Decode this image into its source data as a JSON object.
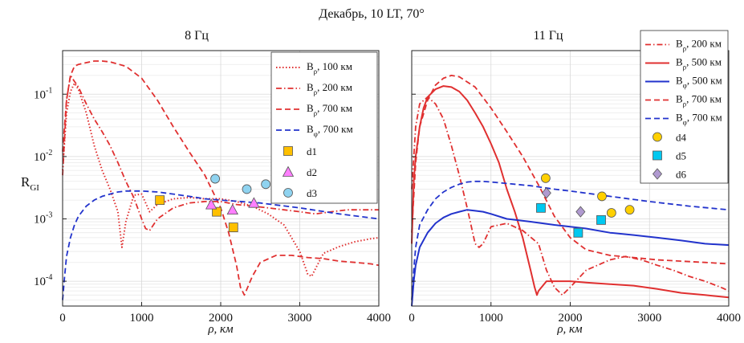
{
  "suptitle": "Декабрь, 10 LT, 70°",
  "chart_data": [
    {
      "type": "line",
      "title": "8 Гц",
      "xlabel": "ρ, км",
      "ylabel": "R_GI",
      "ylabel_main": "R",
      "ylabel_sub": "GI",
      "xlim": [
        0,
        4000
      ],
      "ylim": [
        4e-05,
        0.5
      ],
      "yscale": "log",
      "grid": true,
      "legend_position": "top-right",
      "xticks": [
        0,
        1000,
        2000,
        3000,
        4000
      ],
      "xtick_labels": [
        "0",
        "1000",
        "2000",
        "3000",
        "4000"
      ],
      "yticks": [
        0.0001,
        0.001,
        0.01,
        0.1
      ],
      "ytick_labels": [
        {
          "base": "10",
          "exp": "-4"
        },
        {
          "base": "10",
          "exp": "-3"
        },
        {
          "base": "10",
          "exp": "-2"
        },
        {
          "base": "10",
          "exp": "-1"
        }
      ],
      "series": [
        {
          "name": "Bρ, 100 км",
          "label_base": "B",
          "label_sub": "ρ",
          "label_rest": ", 100 км",
          "color": "#e03030",
          "dash": "1.5,2.5",
          "width": 2,
          "x": [
            0,
            50,
            100,
            150,
            200,
            300,
            400,
            500,
            600,
            700,
            750,
            800,
            900,
            1000,
            1100,
            1200,
            1400,
            1600,
            1800,
            2000,
            2200,
            2400,
            2600,
            2800,
            3000,
            3100,
            3150,
            3200,
            3300,
            3500,
            3700,
            3900,
            4000
          ],
          "y": [
            0.006,
            0.05,
            0.11,
            0.15,
            0.12,
            0.05,
            0.015,
            0.006,
            0.003,
            0.0013,
            0.00035,
            0.0009,
            0.0024,
            0.0025,
            0.0013,
            0.0017,
            0.0021,
            0.0022,
            0.0021,
            0.0021,
            0.0019,
            0.0016,
            0.0012,
            0.0008,
            0.0003,
            0.00013,
            0.00012,
            0.00016,
            0.00028,
            0.00036,
            0.00043,
            0.00048,
            0.0005
          ]
        },
        {
          "name": "Bρ, 200 км",
          "label_base": "B",
          "label_sub": "ρ",
          "label_rest": ", 200 км",
          "color": "#e03030",
          "dash": "7,3,1.5,3",
          "width": 1.8,
          "x": [
            0,
            50,
            100,
            150,
            200,
            300,
            400,
            500,
            600,
            700,
            800,
            900,
            1000,
            1050,
            1100,
            1200,
            1400,
            1600,
            1800,
            2000,
            2200,
            2400,
            2600,
            2800,
            3000,
            3200,
            3400,
            3600,
            3800,
            4000
          ],
          "y": [
            0.005,
            0.08,
            0.2,
            0.16,
            0.13,
            0.07,
            0.04,
            0.025,
            0.015,
            0.008,
            0.004,
            0.0022,
            0.001,
            0.0007,
            0.00065,
            0.001,
            0.0015,
            0.0018,
            0.0019,
            0.0019,
            0.0017,
            0.0016,
            0.0015,
            0.0014,
            0.0013,
            0.0012,
            0.0013,
            0.0014,
            0.0014,
            0.0014
          ]
        },
        {
          "name": "Bρ, 700 км",
          "label_base": "B",
          "label_sub": "ρ",
          "label_rest": ", 700 км",
          "color": "#e03030",
          "dash": "7,4",
          "width": 1.8,
          "x": [
            0,
            50,
            100,
            150,
            200,
            300,
            400,
            500,
            600,
            800,
            1000,
            1200,
            1400,
            1600,
            1800,
            2000,
            2100,
            2200,
            2250,
            2300,
            2400,
            2500,
            2700,
            2900,
            3100,
            3300,
            3500,
            3700,
            3900,
            4000
          ],
          "y": [
            0.012,
            0.08,
            0.2,
            0.28,
            0.3,
            0.32,
            0.34,
            0.34,
            0.33,
            0.28,
            0.18,
            0.08,
            0.03,
            0.012,
            0.005,
            0.0015,
            0.0006,
            0.00018,
            8e-05,
            6e-05,
            0.00012,
            0.0002,
            0.00026,
            0.00026,
            0.00024,
            0.00023,
            0.00021,
            0.0002,
            0.00019,
            0.00018
          ]
        },
        {
          "name": "Bφ, 700 км",
          "label_base": "B",
          "label_sub": "φ",
          "label_rest": ", 700 км",
          "color": "#2233cc",
          "dash": "7,4",
          "width": 1.8,
          "x": [
            0,
            25,
            50,
            100,
            150,
            200,
            300,
            400,
            500,
            600,
            700,
            800,
            1000,
            1200,
            1400,
            1600,
            1800,
            2000,
            2500,
            3000,
            3500,
            4000
          ],
          "y": [
            5e-05,
            0.00012,
            0.00025,
            0.0005,
            0.0008,
            0.0011,
            0.0016,
            0.002,
            0.0023,
            0.0025,
            0.0027,
            0.0028,
            0.0028,
            0.0027,
            0.0025,
            0.0023,
            0.0021,
            0.002,
            0.0018,
            0.0015,
            0.0012,
            0.001
          ]
        }
      ],
      "markers": [
        {
          "name": "d1",
          "shape": "square",
          "color": "#ffc000",
          "x": [
            1230,
            1950,
            2160
          ],
          "y": [
            0.002,
            0.0013,
            0.00073
          ]
        },
        {
          "name": "d2",
          "shape": "triangle",
          "color": "#ff7fff",
          "x": [
            1880,
            2150,
            2420
          ],
          "y": [
            0.0017,
            0.0014,
            0.0018
          ]
        },
        {
          "name": "d3",
          "shape": "circle",
          "color": "#8fd3f0",
          "x": [
            1930,
            2330,
            2570
          ],
          "y": [
            0.0044,
            0.003,
            0.0036
          ]
        }
      ]
    },
    {
      "type": "line",
      "title": "11 Гц",
      "xlabel": "ρ, км",
      "xlim": [
        0,
        4000
      ],
      "ylim": [
        4e-05,
        0.5
      ],
      "yscale": "log",
      "grid": true,
      "legend_position": "top-right",
      "xticks": [
        0,
        1000,
        2000,
        3000,
        4000
      ],
      "xtick_labels": [
        "0",
        "1000",
        "2000",
        "3000",
        "4000"
      ],
      "yticks": [
        0.0001,
        0.001,
        0.01,
        0.1
      ],
      "series": [
        {
          "name": "Bρ, 200 км",
          "label_base": "B",
          "label_sub": "ρ",
          "label_rest": ", 200 км",
          "color": "#e03030",
          "dash": "7,3,1.5,3",
          "width": 1.8,
          "x": [
            0,
            50,
            100,
            200,
            300,
            400,
            500,
            600,
            700,
            800,
            850,
            900,
            1000,
            1200,
            1400,
            1600,
            1700,
            1800,
            1900,
            2000,
            2200,
            2500,
            2700,
            2900,
            3100,
            3300,
            3500,
            3700,
            3900,
            4000
          ],
          "y": [
            0.003,
            0.03,
            0.07,
            0.09,
            0.07,
            0.04,
            0.015,
            0.005,
            0.0015,
            0.0004,
            0.00035,
            0.0004,
            0.00075,
            0.00085,
            0.00065,
            0.0004,
            0.00015,
            8e-05,
            6e-05,
            8e-05,
            0.00015,
            0.00022,
            0.00025,
            0.00022,
            0.00018,
            0.00015,
            0.00012,
            0.0001,
            8e-05,
            7e-05
          ]
        },
        {
          "name": "Bρ, 500 км",
          "label_base": "B",
          "label_sub": "ρ",
          "label_rest": ", 500 км",
          "color": "#e03030",
          "dash": "",
          "width": 2,
          "x": [
            0,
            25,
            50,
            100,
            150,
            200,
            300,
            400,
            500,
            600,
            700,
            800,
            900,
            1000,
            1100,
            1200,
            1300,
            1400,
            1500,
            1550,
            1580,
            1600,
            1700,
            1800,
            2000,
            2200,
            2500,
            2800,
            3100,
            3400,
            3700,
            4000
          ],
          "y": [
            0.0004,
            0.004,
            0.01,
            0.03,
            0.06,
            0.09,
            0.12,
            0.135,
            0.13,
            0.11,
            0.08,
            0.05,
            0.03,
            0.016,
            0.008,
            0.003,
            0.0013,
            0.0005,
            0.00015,
            8e-05,
            6e-05,
            7e-05,
            0.0001,
            0.0001,
            0.0001,
            9.5e-05,
            9e-05,
            8.5e-05,
            7.5e-05,
            6.5e-05,
            6e-05,
            5.5e-05
          ]
        },
        {
          "name": "Bφ, 500 км",
          "label_base": "B",
          "label_sub": "φ",
          "label_rest": ", 500 км",
          "color": "#2233cc",
          "dash": "",
          "width": 2,
          "x": [
            0,
            25,
            50,
            100,
            200,
            300,
            400,
            500,
            600,
            700,
            800,
            900,
            1000,
            1200,
            1500,
            1800,
            2000,
            2200,
            2500,
            2800,
            3100,
            3400,
            3700,
            4000
          ],
          "y": [
            4e-05,
            0.0001,
            0.00018,
            0.00035,
            0.0006,
            0.00085,
            0.00105,
            0.0012,
            0.0013,
            0.0014,
            0.00135,
            0.0013,
            0.0012,
            0.001,
            0.0009,
            0.0008,
            0.00075,
            0.0007,
            0.0006,
            0.00055,
            0.0005,
            0.00045,
            0.0004,
            0.00038
          ]
        },
        {
          "name": "Bρ, 700 км",
          "label_base": "B",
          "label_sub": "ρ",
          "label_rest": ", 700 км",
          "color": "#e03030",
          "dash": "7,4",
          "width": 1.8,
          "x": [
            0,
            50,
            100,
            200,
            300,
            400,
            500,
            600,
            800,
            1000,
            1200,
            1400,
            1600,
            1800,
            2000,
            2200,
            2500,
            2800,
            3100,
            3400,
            3700,
            4000
          ],
          "y": [
            0.0006,
            0.008,
            0.03,
            0.08,
            0.14,
            0.18,
            0.2,
            0.19,
            0.13,
            0.06,
            0.025,
            0.01,
            0.0035,
            0.0011,
            0.0005,
            0.00032,
            0.00026,
            0.00024,
            0.00022,
            0.00021,
            0.0002,
            0.00019
          ]
        },
        {
          "name": "Bφ, 700 км",
          "label_base": "B",
          "label_sub": "φ",
          "label_rest": ", 700 км",
          "color": "#2233cc",
          "dash": "7,4",
          "width": 1.8,
          "x": [
            0,
            25,
            50,
            100,
            200,
            300,
            400,
            500,
            600,
            700,
            800,
            900,
            1000,
            1200,
            1500,
            1800,
            2000,
            2500,
            3000,
            3500,
            4000
          ],
          "y": [
            5e-05,
            0.00015,
            0.00035,
            0.0008,
            0.0014,
            0.0021,
            0.0027,
            0.0032,
            0.0036,
            0.0039,
            0.004,
            0.004,
            0.0039,
            0.0037,
            0.0034,
            0.003,
            0.0028,
            0.0023,
            0.0019,
            0.0016,
            0.0014
          ]
        }
      ],
      "markers": [
        {
          "name": "d4",
          "shape": "circle",
          "color": "#ffd000",
          "x": [
            1690,
            2400,
            2520,
            2750
          ],
          "y": [
            0.0045,
            0.0023,
            0.00125,
            0.0014
          ]
        },
        {
          "name": "d5",
          "shape": "square",
          "color": "#00c8f0",
          "x": [
            1630,
            2100,
            2390
          ],
          "y": [
            0.0015,
            0.0006,
            0.00096
          ]
        },
        {
          "name": "d6",
          "shape": "diamond",
          "color": "#b09ad0",
          "x": [
            1700,
            2130
          ],
          "y": [
            0.0026,
            0.0013
          ]
        }
      ]
    }
  ]
}
